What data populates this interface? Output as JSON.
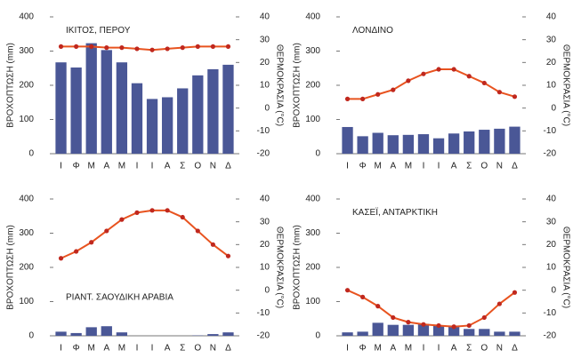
{
  "chart_data": [
    {
      "type": "bar",
      "title": "ΙΚΙΤΟΣ, ΠΕΡΟΥ",
      "y_label": "ΒΡΟΧΟΠΤΩΣΗ (mm)",
      "y2_label": "ΘΕΡΜΟΚΡΑΣΙΑ (°C)",
      "categories": [
        "Ι",
        "Φ",
        "Μ",
        "Α",
        "Μ",
        "Ι",
        "Ι",
        "Α",
        "Σ",
        "Ο",
        "Ν",
        "Δ"
      ],
      "ylim": [
        0,
        400
      ],
      "yticks": [
        0,
        100,
        200,
        300,
        400
      ],
      "y2lim": [
        -20,
        40
      ],
      "y2ticks": [
        -20,
        -10,
        0,
        10,
        20,
        30,
        40
      ],
      "series": [
        {
          "color": "#4a5796",
          "values": [
            267,
            252,
            323,
            303,
            267,
            206,
            160,
            165,
            191,
            229,
            247,
            260
          ]
        },
        {
          "type": "line",
          "axis": "y2",
          "color": "#e8531f",
          "marker_color": "#c0281e",
          "values": [
            27,
            27,
            27,
            26.5,
            26.5,
            26,
            25.5,
            26,
            26.5,
            27,
            27,
            27
          ]
        }
      ]
    },
    {
      "type": "bar",
      "title": "ΛΟΝΔΙΝΟ",
      "y_label": "ΒΡΟΧΟΠΤΩΣΗ (mm)",
      "y2_label": "ΘΕΡΜΟΚΡΑΣΙΑ (°C)",
      "categories": [
        "Ι",
        "Φ",
        "Μ",
        "Α",
        "Μ",
        "Ι",
        "Ι",
        "Α",
        "Σ",
        "Ο",
        "Ν",
        "Δ"
      ],
      "ylim": [
        0,
        400
      ],
      "yticks": [
        0,
        100,
        200,
        300,
        400
      ],
      "y2lim": [
        -20,
        40
      ],
      "y2ticks": [
        -20,
        -10,
        0,
        10,
        20,
        30,
        40
      ],
      "series": [
        {
          "color": "#4a5796",
          "values": [
            78,
            51,
            61,
            54,
            55,
            57,
            45,
            59,
            65,
            70,
            73,
            79
          ]
        },
        {
          "type": "line",
          "axis": "y2",
          "color": "#e8531f",
          "marker_color": "#c0281e",
          "values": [
            4,
            4,
            6,
            8,
            12,
            15,
            17,
            17,
            14,
            11,
            7,
            5
          ]
        }
      ]
    },
    {
      "type": "bar",
      "title": "ΡΙΑΝΤ. ΣΑΟΥΔΙΚΗ ΑΡΑΒΙΑ",
      "y_label": "ΒΡΟΧΟΠΤΩΣΗ (mm)",
      "y2_label": "ΘΕΡΜΟΚΡΑΣΙΑ (°C)",
      "categories": [
        "Ι",
        "Φ",
        "Μ",
        "Α",
        "Μ",
        "Ι",
        "Ι",
        "Α",
        "Σ",
        "Ο",
        "Ν",
        "Δ"
      ],
      "ylim": [
        0,
        400
      ],
      "yticks": [
        0,
        100,
        200,
        300,
        400
      ],
      "y2lim": [
        -20,
        40
      ],
      "y2ticks": [
        -20,
        -10,
        0,
        10,
        20,
        30,
        40
      ],
      "series": [
        {
          "color": "#4a5796",
          "values": [
            12,
            8,
            25,
            28,
            10,
            0,
            0,
            0,
            0,
            1,
            5,
            10
          ]
        },
        {
          "type": "line",
          "axis": "y2",
          "color": "#e8531f",
          "marker_color": "#c0281e",
          "values": [
            14,
            17,
            21,
            26,
            31,
            34,
            35,
            35,
            32,
            26,
            20,
            15
          ]
        }
      ]
    },
    {
      "type": "bar",
      "title": "ΚΑΣΕΪ, ΑΝΤΑΡΚΤΙΚΗ",
      "y_label": "ΒΡΟΧΟΠΤΩΣΗ (mm)",
      "y2_label": "ΘΕΡΜΟΚΡΑΣΙΑ (°C)",
      "categories": [
        "Ι",
        "Φ",
        "Μ",
        "Α",
        "Μ",
        "Ι",
        "Ι",
        "Α",
        "Σ",
        "Ο",
        "Ν",
        "Δ"
      ],
      "ylim": [
        0,
        400
      ],
      "yticks": [
        0,
        100,
        200,
        300,
        400
      ],
      "y2lim": [
        -20,
        40
      ],
      "y2ticks": [
        -20,
        -10,
        0,
        10,
        20,
        30,
        40
      ],
      "series": [
        {
          "color": "#4a5796",
          "values": [
            10,
            12,
            38,
            32,
            32,
            35,
            30,
            30,
            20,
            20,
            12,
            12
          ]
        },
        {
          "type": "line",
          "axis": "y2",
          "color": "#e8531f",
          "marker_color": "#c0281e",
          "values": [
            0,
            -3,
            -7,
            -12,
            -14,
            -15,
            -15.5,
            -16,
            -15.5,
            -12,
            -6,
            -1
          ]
        }
      ]
    }
  ]
}
